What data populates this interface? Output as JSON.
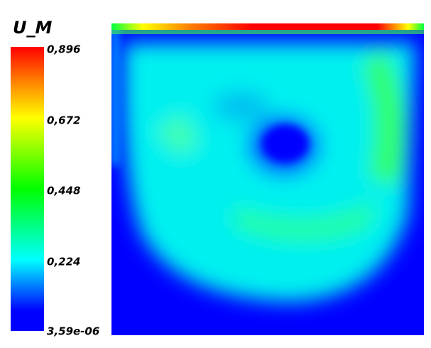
{
  "title": "U_M",
  "colorbar": {
    "labels": [
      "0,896",
      "0,672",
      "0,448",
      "0,224",
      "3,59e-06"
    ]
  }
}
